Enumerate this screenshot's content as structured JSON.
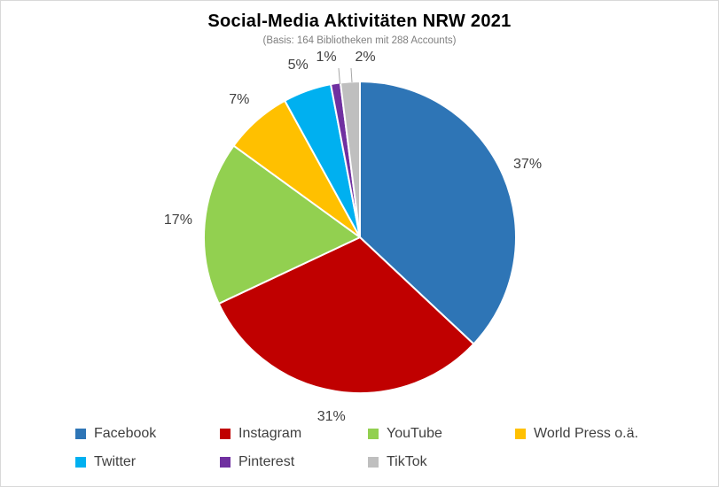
{
  "window": {
    "background": "#ffffff",
    "border_color": "#d9d9d9"
  },
  "chart_data": {
    "type": "pie",
    "title": "Social-Media Aktivitäten NRW 2021",
    "subtitle": "(Basis: 164 Bibliotheken mit 288 Accounts)",
    "unit": "percent",
    "start_angle_deg": 0,
    "direction": "clockwise",
    "legend_position": "bottom",
    "data_labels": "outside",
    "series": [
      {
        "name": "Facebook",
        "value": 37,
        "label": "37%",
        "color": "#2e75b6"
      },
      {
        "name": "Instagram",
        "value": 31,
        "label": "31%",
        "color": "#c00000"
      },
      {
        "name": "YouTube",
        "value": 17,
        "label": "17%",
        "color": "#92d050"
      },
      {
        "name": "World Press o.ä.",
        "value": 7,
        "label": "7%",
        "color": "#ffc000"
      },
      {
        "name": "Twitter",
        "value": 5,
        "label": "5%",
        "color": "#00b0f0"
      },
      {
        "name": "Pinterest",
        "value": 1,
        "label": "1%",
        "color": "#7030a0"
      },
      {
        "name": "TikTok",
        "value": 2,
        "label": "2%",
        "color": "#bfbfbf"
      }
    ],
    "label_color": "#404040",
    "leader_line_color": "#a6a6a6",
    "slice_border_color": "#ffffff"
  }
}
